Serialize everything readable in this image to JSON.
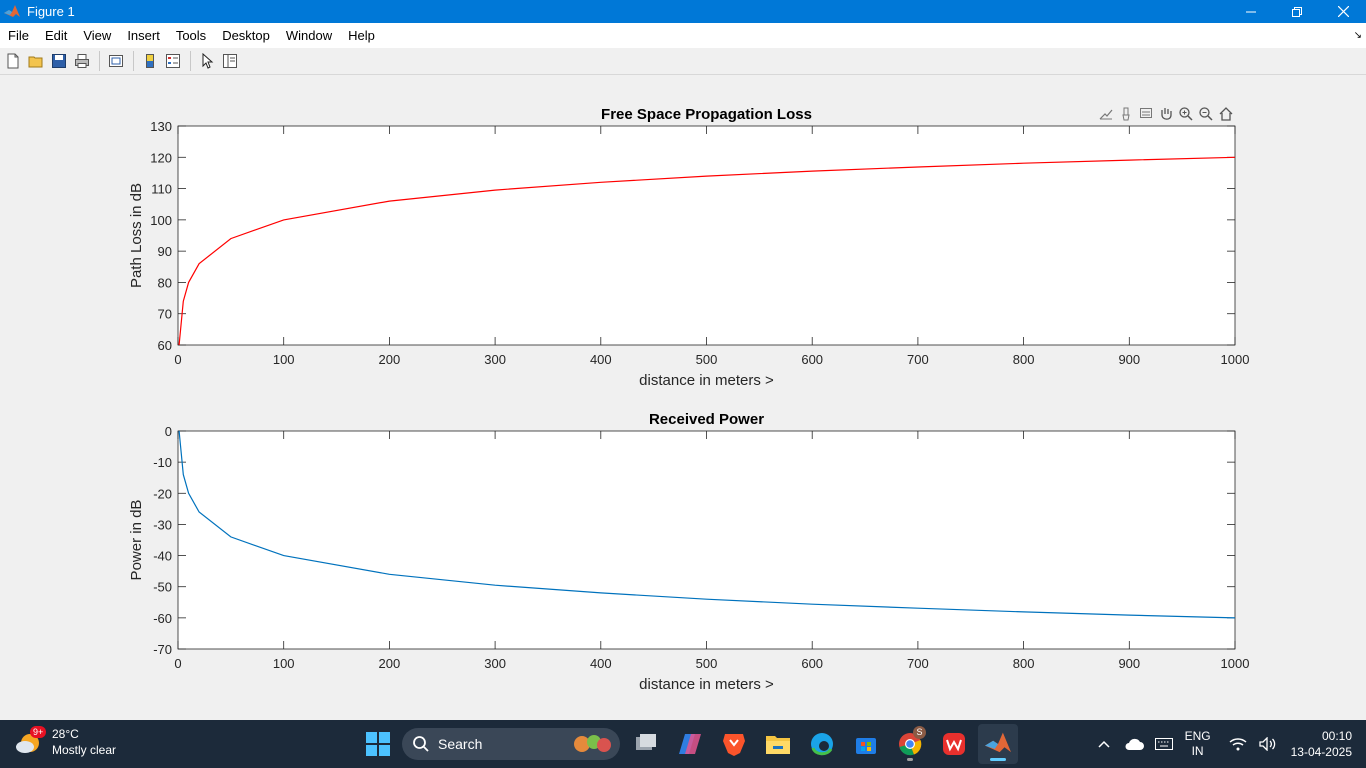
{
  "window": {
    "title": "Figure 1",
    "menu": [
      "File",
      "Edit",
      "View",
      "Insert",
      "Tools",
      "Desktop",
      "Window",
      "Help"
    ]
  },
  "colors": {
    "titlebar": "#0078d7",
    "series_loss": "#ff0000",
    "series_power": "#0072bd",
    "taskbar": "#1c2a3a"
  },
  "chart_data": [
    {
      "type": "line",
      "title": "Free Space Propagation Loss",
      "xlabel": "distance in meters >",
      "ylabel": "Path Loss in dB",
      "xlim": [
        0,
        1000
      ],
      "ylim": [
        60,
        130
      ],
      "xticks": [
        0,
        100,
        200,
        300,
        400,
        500,
        600,
        700,
        800,
        900,
        1000
      ],
      "yticks": [
        60,
        70,
        80,
        90,
        100,
        110,
        120,
        130
      ],
      "grid": false,
      "series": [
        {
          "color": "#ff0000",
          "x": [
            1,
            5,
            10,
            20,
            50,
            100,
            200,
            300,
            400,
            500,
            600,
            700,
            800,
            900,
            1000
          ],
          "y": [
            60.0,
            74.0,
            80.0,
            86.0,
            94.0,
            100.0,
            106.0,
            109.5,
            112.0,
            114.0,
            115.6,
            116.9,
            118.1,
            119.1,
            120.0
          ]
        }
      ]
    },
    {
      "type": "line",
      "title": "Received Power",
      "xlabel": "distance in meters >",
      "ylabel": "Power in dB",
      "xlim": [
        0,
        1000
      ],
      "ylim": [
        -70,
        0
      ],
      "xticks": [
        0,
        100,
        200,
        300,
        400,
        500,
        600,
        700,
        800,
        900,
        1000
      ],
      "yticks": [
        -70,
        -60,
        -50,
        -40,
        -30,
        -20,
        -10,
        0
      ],
      "grid": false,
      "series": [
        {
          "color": "#0072bd",
          "x": [
            1,
            5,
            10,
            20,
            50,
            100,
            200,
            300,
            400,
            500,
            600,
            700,
            800,
            900,
            1000
          ],
          "y": [
            0.0,
            -14.0,
            -20.0,
            -26.0,
            -34.0,
            -40.0,
            -46.0,
            -49.5,
            -52.0,
            -54.0,
            -55.6,
            -56.9,
            -58.1,
            -59.1,
            -60.0
          ]
        }
      ]
    }
  ],
  "taskbar": {
    "weather_temp": "28°C",
    "weather_desc": "Mostly clear",
    "weather_badge": "9+",
    "search_label": "Search",
    "lang_line1": "ENG",
    "lang_line2": "IN",
    "time": "00:10",
    "date": "13-04-2025",
    "chrome_badge": "S"
  }
}
